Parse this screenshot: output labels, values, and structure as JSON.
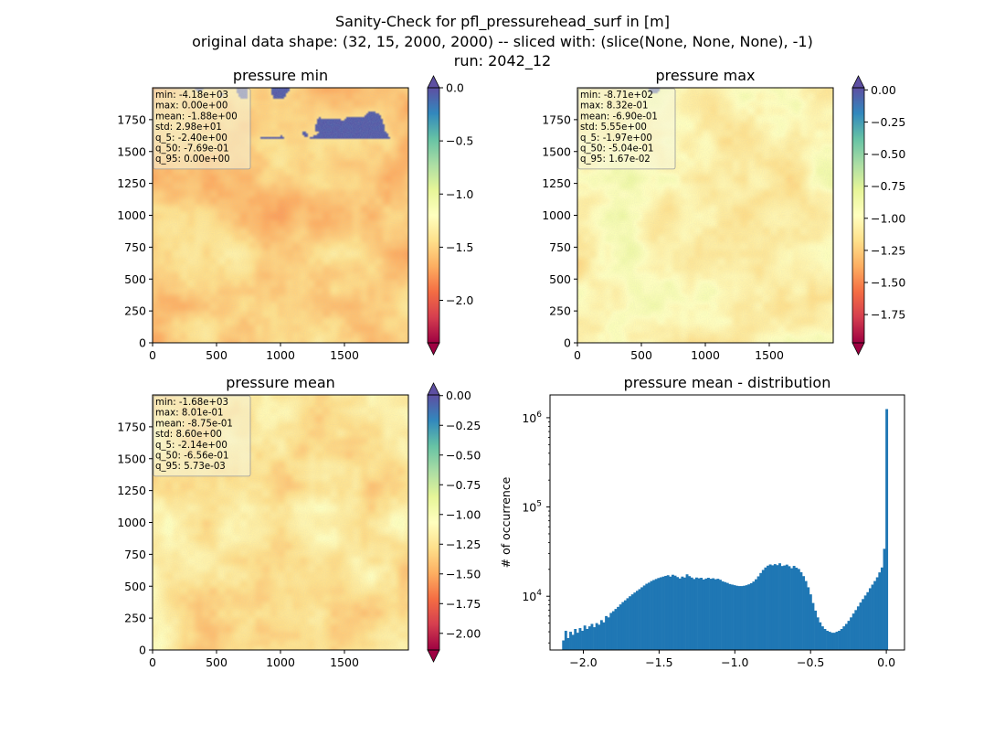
{
  "figure": {
    "title_lines": [
      "Sanity-Check for pfl_pressurehead_surf in [m]",
      "original data shape: (32, 15, 2000, 2000) -- sliced with: (slice(None, None, None), -1)",
      "run: 2042_12"
    ]
  },
  "colors": {
    "cmap_stops": [
      "#9e0142",
      "#d53e4f",
      "#f46d43",
      "#fdae61",
      "#fee08b",
      "#ffffbf",
      "#e6f598",
      "#abdda4",
      "#66c2a5",
      "#3288bd",
      "#5e4fa2"
    ],
    "hist_bar": "#1f77b4",
    "stats_box_fill": "#f5f5dc"
  },
  "chart_data": [
    {
      "type": "heatmap",
      "id": "pmin",
      "title": "pressure min",
      "x_ticks": [
        "0",
        "500",
        "1000",
        "1500"
      ],
      "y_ticks": [
        "0",
        "250",
        "500",
        "750",
        "1000",
        "1250",
        "1500",
        "1750"
      ],
      "xlim": [
        0,
        2000
      ],
      "ylim": [
        0,
        2000
      ],
      "color_range": [
        -2.4,
        0.0
      ],
      "colorbar_ticks": [
        "0.0",
        "−0.5",
        "−1.0",
        "−1.5",
        "−2.0"
      ],
      "colorbar_tick_values": [
        0.0,
        -0.5,
        -1.0,
        -1.5,
        -2.0
      ],
      "colorbar_extend": "both",
      "stats": [
        "min: -4.18e+03",
        "max: 0.00e+00",
        "mean: -1.88e+00",
        "std: 2.98e+01",
        "q_5: -2.40e+00",
        "q_50: -7.69e-01",
        "q_95: 0.00e+00"
      ]
    },
    {
      "type": "heatmap",
      "id": "pmax",
      "title": "pressure max",
      "x_ticks": [
        "0",
        "500",
        "1000",
        "1500"
      ],
      "y_ticks": [
        "0",
        "250",
        "500",
        "750",
        "1000",
        "1250",
        "1500",
        "1750"
      ],
      "xlim": [
        0,
        2000
      ],
      "ylim": [
        0,
        2000
      ],
      "color_range": [
        -1.97,
        0.0167
      ],
      "colorbar_ticks": [
        "0.00",
        "−0.25",
        "−0.50",
        "−0.75",
        "−1.00",
        "−1.25",
        "−1.50",
        "−1.75"
      ],
      "colorbar_tick_values": [
        0.0,
        -0.25,
        -0.5,
        -0.75,
        -1.0,
        -1.25,
        -1.5,
        -1.75
      ],
      "colorbar_extend": "both",
      "stats": [
        "min: -8.71e+02",
        "max: 8.32e-01",
        "mean: -6.90e-01",
        "std: 5.55e+00",
        "q_5: -1.97e+00",
        "q_50: -5.04e-01",
        "q_95: 1.67e-02"
      ]
    },
    {
      "type": "heatmap",
      "id": "pmean",
      "title": "pressure mean",
      "x_ticks": [
        "0",
        "500",
        "1000",
        "1500"
      ],
      "y_ticks": [
        "0",
        "250",
        "500",
        "750",
        "1000",
        "1250",
        "1500",
        "1750"
      ],
      "xlim": [
        0,
        2000
      ],
      "ylim": [
        0,
        2000
      ],
      "color_range": [
        -2.14,
        0.00573
      ],
      "colorbar_ticks": [
        "0.00",
        "−0.25",
        "−0.50",
        "−0.75",
        "−1.00",
        "−1.25",
        "−1.50",
        "−1.75",
        "−2.00"
      ],
      "colorbar_tick_values": [
        0.0,
        -0.25,
        -0.5,
        -0.75,
        -1.0,
        -1.25,
        -1.5,
        -1.75,
        -2.0
      ],
      "colorbar_extend": "both",
      "stats": [
        "min: -1.68e+03",
        "max: 8.01e-01",
        "mean: -8.75e-01",
        "std: 8.60e+00",
        "q_5: -2.14e+00",
        "q_50: -6.56e-01",
        "q_95: 5.73e-03"
      ]
    },
    {
      "type": "bar",
      "id": "hist",
      "title": "pressure mean - distribution",
      "xlabel": "",
      "ylabel": "# of occurrence",
      "y_scale": "log",
      "xlim": [
        -2.22,
        0.12
      ],
      "ylim": [
        2500,
        1800000
      ],
      "x_ticks": [
        "−2.0",
        "−1.5",
        "−1.0",
        "−0.5",
        "0.0"
      ],
      "x_tick_values": [
        -2.0,
        -1.5,
        -1.0,
        -0.5,
        0.0
      ],
      "y_ticks": [
        {
          "base": "10",
          "exp": "4",
          "value": 10000
        },
        {
          "base": "10",
          "exp": "5",
          "value": 100000
        },
        {
          "base": "10",
          "exp": "6",
          "value": 1000000
        }
      ],
      "bin_range": [
        -2.14,
        0.01
      ],
      "values": [
        3200,
        4100,
        3400,
        4000,
        3700,
        4300,
        3900,
        4400,
        4100,
        4700,
        4300,
        4600,
        4900,
        4500,
        5000,
        4800,
        5400,
        5100,
        6000,
        5800,
        6500,
        6800,
        7200,
        7600,
        8100,
        8600,
        9000,
        9500,
        10000,
        10500,
        11000,
        11500,
        12000,
        12600,
        13200,
        13800,
        14200,
        14800,
        15200,
        15600,
        16000,
        16300,
        16600,
        16900,
        17200,
        16600,
        17400,
        17000,
        16400,
        15800,
        16600,
        16200,
        17600,
        16800,
        16200,
        15600,
        16200,
        15900,
        16100,
        15400,
        15800,
        16100,
        15700,
        15900,
        15500,
        15700,
        15300,
        14700,
        14400,
        14100,
        13700,
        13500,
        13300,
        13100,
        13000,
        13000,
        13100,
        13300,
        13600,
        14000,
        14600,
        15500,
        16700,
        18200,
        19700,
        21000,
        22000,
        22700,
        22200,
        22900,
        22300,
        23400,
        21800,
        22100,
        22600,
        21700,
        20600,
        21900,
        20900,
        20200,
        18600,
        16800,
        14800,
        12600,
        10500,
        8400,
        6900,
        5800,
        5100,
        4600,
        4300,
        4100,
        4000,
        3900,
        3900,
        4000,
        4100,
        4300,
        4600,
        4900,
        5300,
        5800,
        6400,
        7000,
        7700,
        8500,
        9300,
        10200,
        11100,
        12300,
        13500,
        14800,
        16300,
        18500,
        21000,
        34000,
        1250000
      ]
    }
  ]
}
